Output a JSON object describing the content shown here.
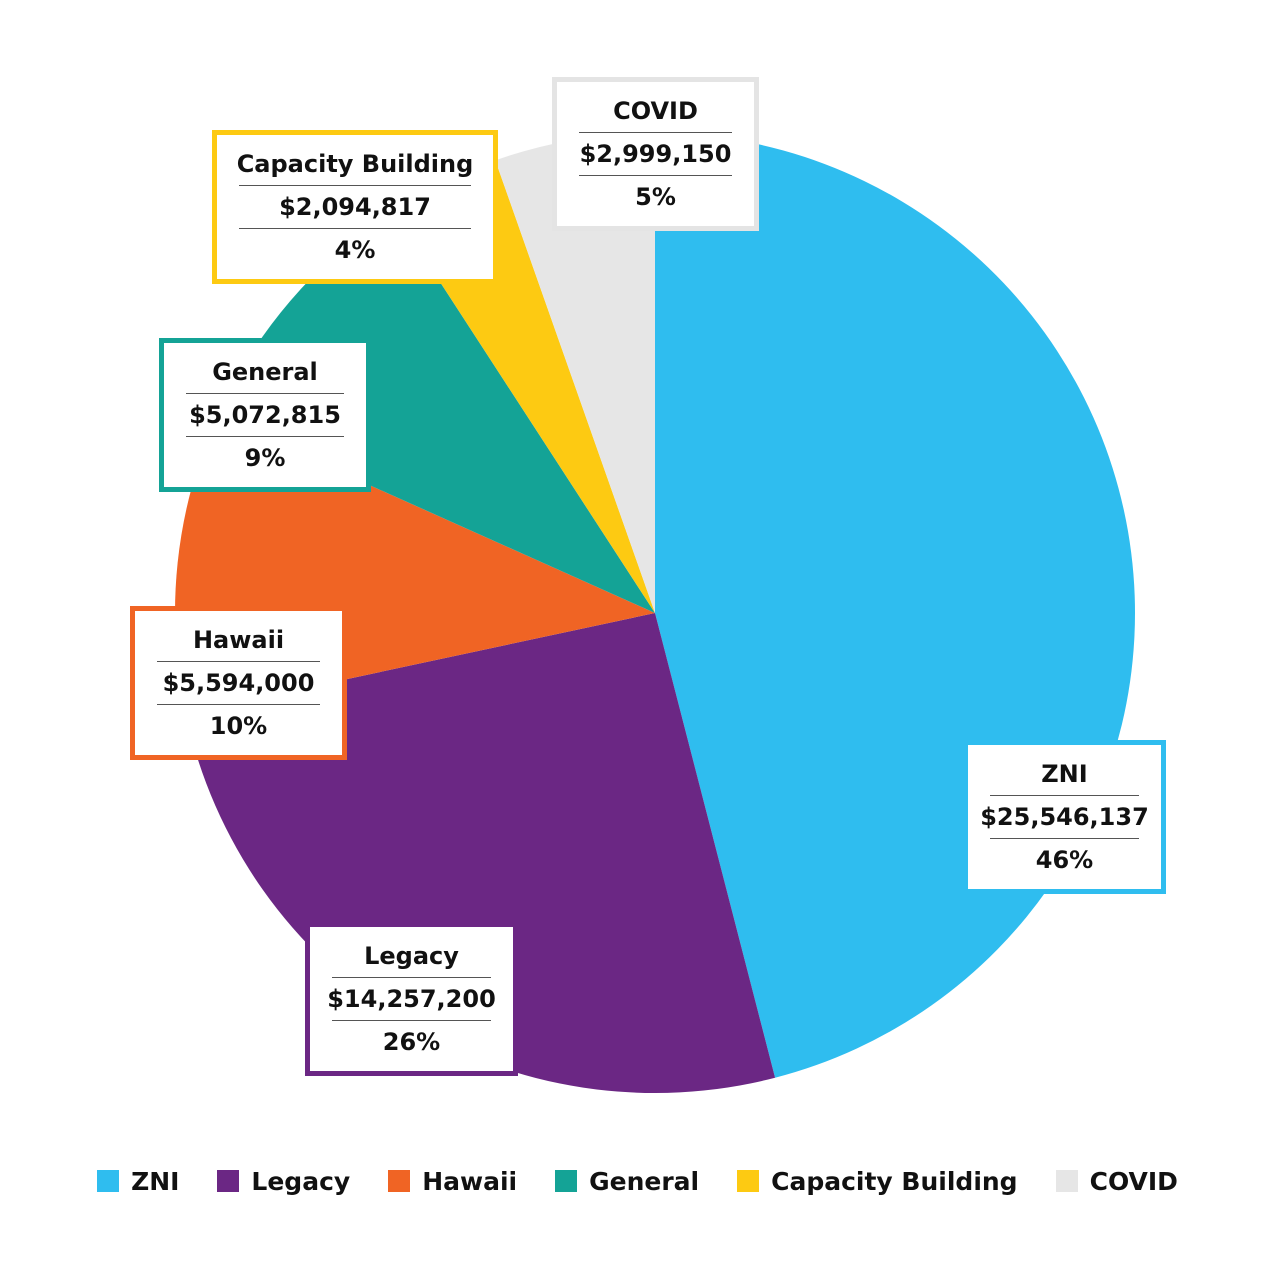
{
  "chart_data": {
    "type": "pie",
    "title": "",
    "legend_placement": "bottom",
    "slices": [
      {
        "label": "ZNI",
        "amount": "$25,546,137",
        "percent_label": "46%",
        "value": 25546137,
        "color": "#2FBDEF",
        "border": "#2FBDEF"
      },
      {
        "label": "Legacy",
        "amount": "$14,257,200",
        "percent_label": "26%",
        "value": 14257200,
        "color": "#6B2784",
        "border": "#6B2784"
      },
      {
        "label": "Hawaii",
        "amount": "$5,594,000",
        "percent_label": "10%",
        "value": 5594000,
        "color": "#F06424",
        "border": "#F06424"
      },
      {
        "label": "General",
        "amount": "$5,072,815",
        "percent_label": "9%",
        "value": 5072815,
        "color": "#14A396",
        "border": "#14A396"
      },
      {
        "label": "Capacity Building",
        "amount": "$2,094,817",
        "percent_label": "4%",
        "value": 2094817,
        "color": "#FDCA12",
        "border": "#FDCA12"
      },
      {
        "label": "COVID",
        "amount": "$2,999,150",
        "percent_label": "5%",
        "value": 2999150,
        "color": "#E6E6E6",
        "border": "#E4E4E4"
      }
    ]
  }
}
